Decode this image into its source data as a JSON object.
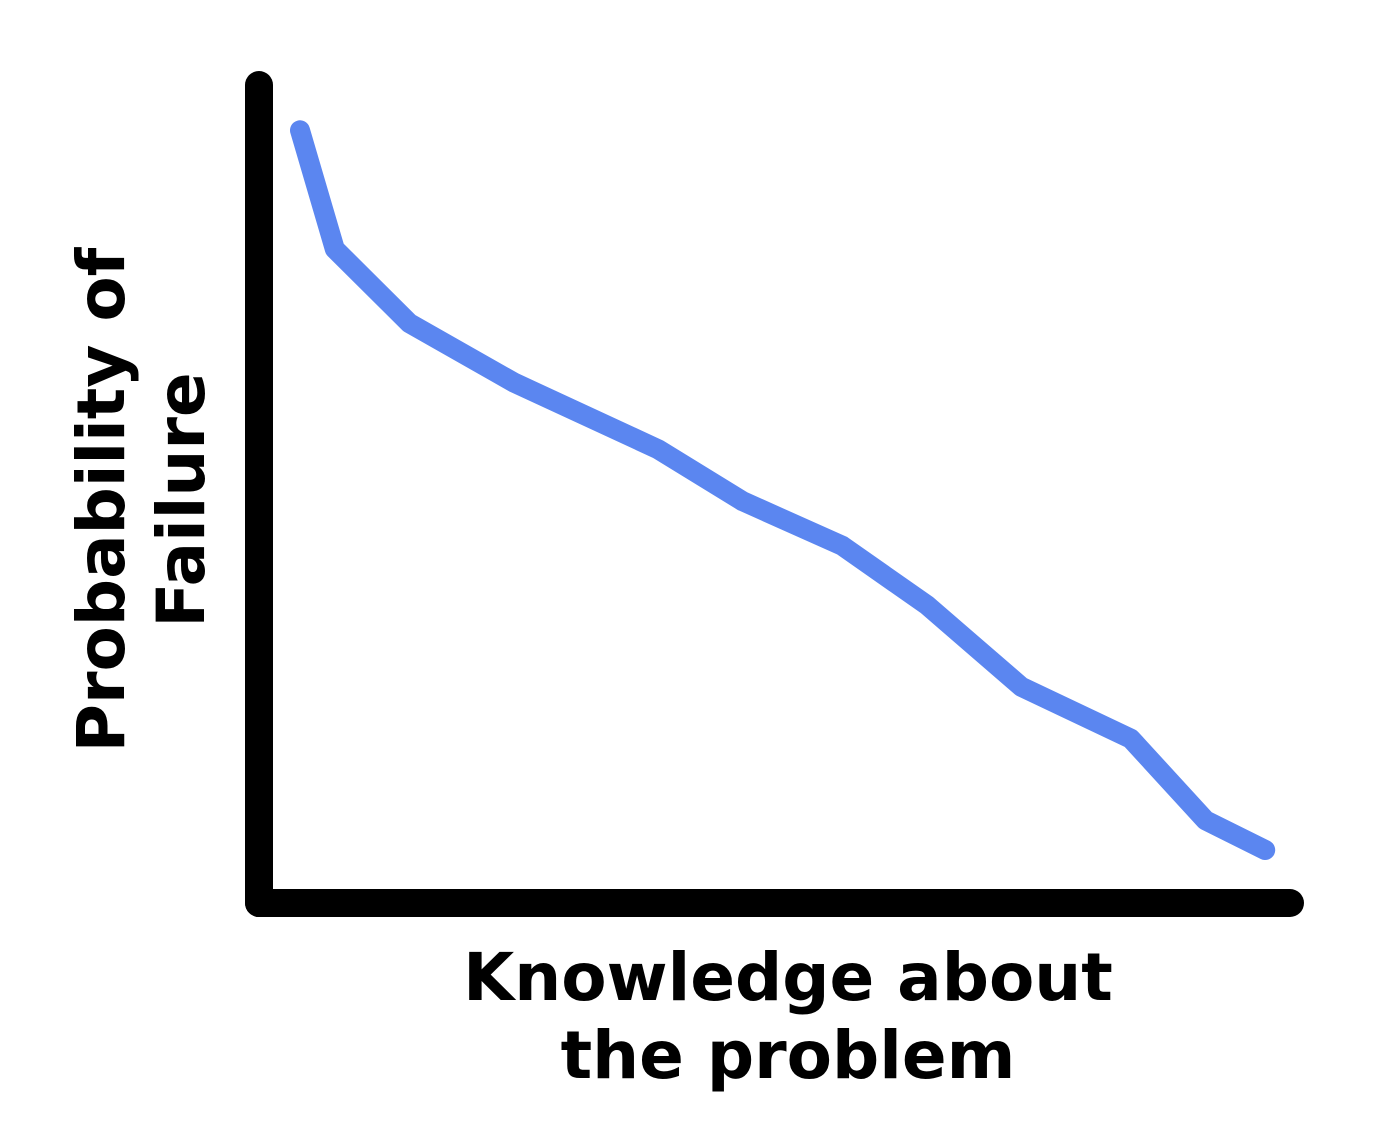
{
  "chart_data": {
    "type": "line",
    "title": "",
    "xlabel_lines": [
      "Knowledge about",
      "the problem"
    ],
    "ylabel_lines": [
      "Probability of",
      "Failure"
    ],
    "xlim": [
      0,
      100
    ],
    "ylim": [
      0,
      100
    ],
    "grid": false,
    "ticks": false,
    "series": [
      {
        "color": "#5B86F0",
        "x": [
          0,
          3.5,
          11,
          21.5,
          36,
          44.5,
          54.5,
          63,
          72.5,
          83.5,
          91,
          97
        ],
        "y": [
          97,
          81,
          71,
          63,
          54,
          47,
          41,
          33,
          22,
          15,
          4,
          0
        ]
      }
    ]
  },
  "colors": {
    "axis": "#000000",
    "background": "#FFFFFF"
  }
}
